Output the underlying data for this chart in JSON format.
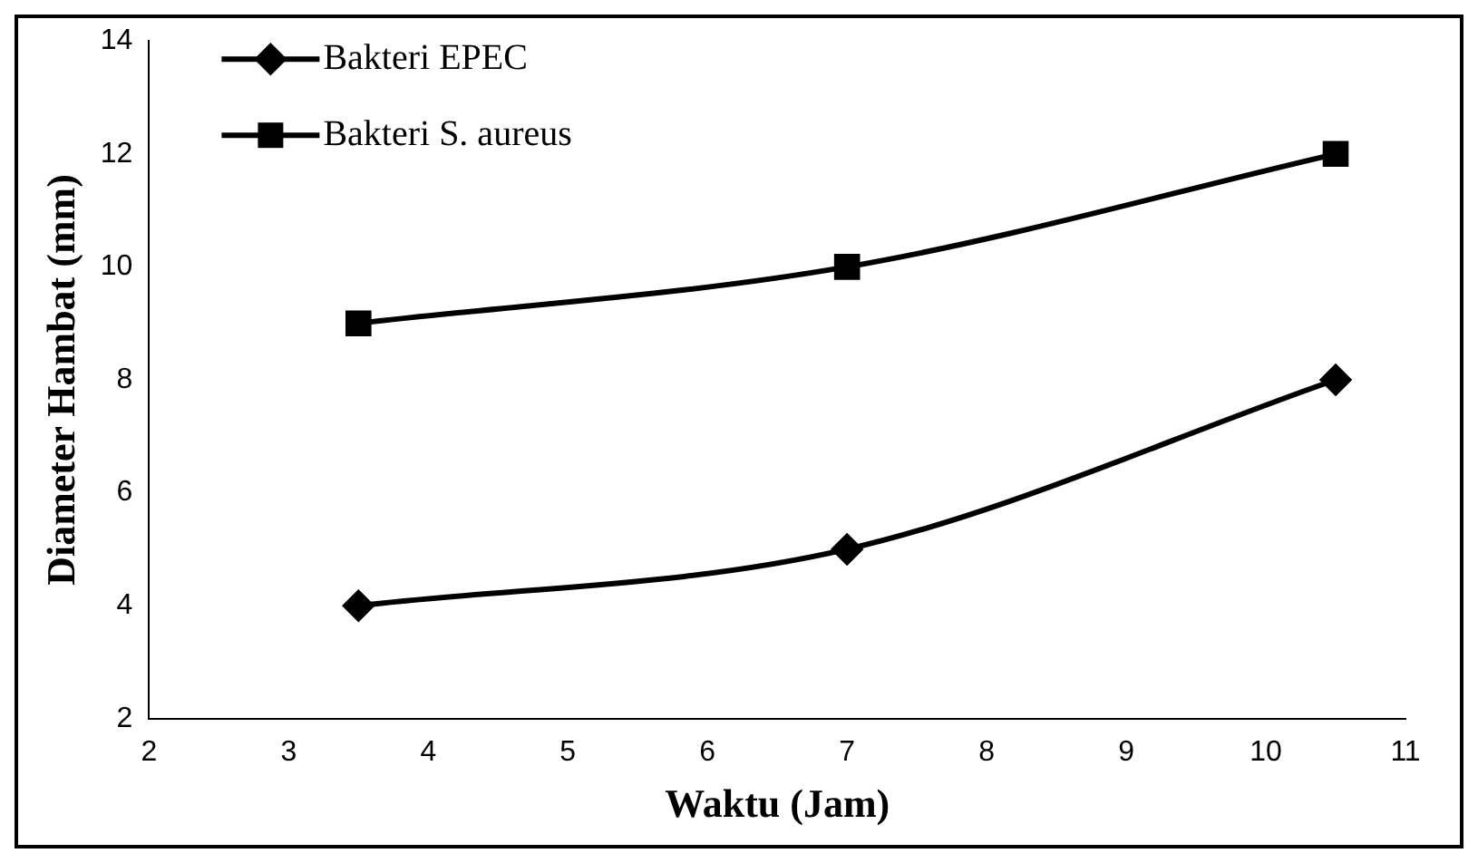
{
  "chart_data": {
    "type": "line",
    "xlabel": "Waktu (Jam)",
    "ylabel": "Diameter Hambat (mm)",
    "xlim": [
      2,
      11
    ],
    "xticks": [
      2,
      3,
      4,
      5,
      6,
      7,
      8,
      9,
      10,
      11
    ],
    "ylim": [
      2,
      14
    ],
    "yticks": [
      2,
      4,
      6,
      8,
      10,
      12,
      14
    ],
    "grid": false,
    "legend": "top left",
    "series": [
      {
        "name": "Bakteri EPEC",
        "color": "#000000",
        "marker": "diamond",
        "x": [
          3.5,
          7,
          10.5
        ],
        "values": [
          4,
          5,
          8
        ]
      },
      {
        "name": "Bakteri S. aureus",
        "color": "#000000",
        "marker": "square",
        "x": [
          3.5,
          7,
          10.5
        ],
        "values": [
          9,
          10,
          12
        ]
      }
    ]
  }
}
